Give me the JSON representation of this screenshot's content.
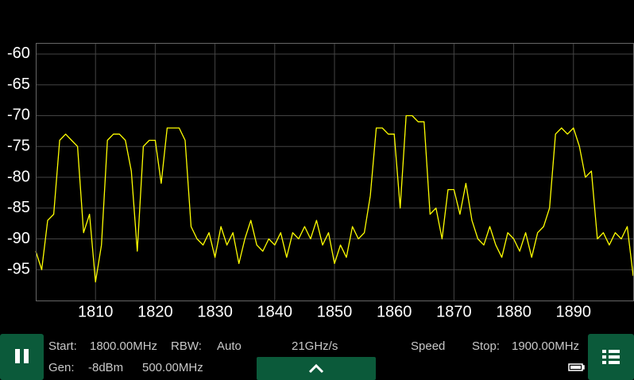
{
  "chart_data": {
    "type": "line",
    "x": [
      1800,
      1801,
      1802,
      1803,
      1804,
      1805,
      1806,
      1807,
      1808,
      1809,
      1810,
      1811,
      1812,
      1813,
      1814,
      1815,
      1816,
      1817,
      1818,
      1819,
      1820,
      1821,
      1822,
      1823,
      1824,
      1825,
      1826,
      1827,
      1828,
      1829,
      1830,
      1831,
      1832,
      1833,
      1834,
      1835,
      1836,
      1837,
      1838,
      1839,
      1840,
      1841,
      1842,
      1843,
      1844,
      1845,
      1846,
      1847,
      1848,
      1849,
      1850,
      1851,
      1852,
      1853,
      1854,
      1855,
      1856,
      1857,
      1858,
      1859,
      1860,
      1861,
      1862,
      1863,
      1864,
      1865,
      1866,
      1867,
      1868,
      1869,
      1870,
      1871,
      1872,
      1873,
      1874,
      1875,
      1876,
      1877,
      1878,
      1879,
      1880,
      1881,
      1882,
      1883,
      1884,
      1885,
      1886,
      1887,
      1888,
      1889,
      1890,
      1891,
      1892,
      1893,
      1894,
      1895,
      1896,
      1897,
      1898,
      1899,
      1900
    ],
    "series": [
      {
        "color": "#ffff00",
        "values": [
          -92,
          -95,
          -87,
          -86,
          -74,
          -73,
          -74,
          -75,
          -89,
          -86,
          -97,
          -91,
          -74,
          -73,
          -73,
          -74,
          -79,
          -92,
          -75,
          -74,
          -74,
          -81,
          -72,
          -72,
          -72,
          -74,
          -88,
          -90,
          -91,
          -89,
          -93,
          -88,
          -91,
          -89,
          -94,
          -90,
          -87,
          -91,
          -92,
          -90,
          -91,
          -89,
          -93,
          -89,
          -90,
          -88,
          -90,
          -87,
          -91,
          -89,
          -94,
          -91,
          -93,
          -88,
          -90,
          -89,
          -83,
          -72,
          -72,
          -73,
          -73,
          -85,
          -70,
          -70,
          -71,
          -71,
          -86,
          -85,
          -90,
          -82,
          -82,
          -86,
          -81,
          -87,
          -90,
          -91,
          -88,
          -91,
          -93,
          -89,
          -90,
          -92,
          -89,
          -93,
          -89,
          -88,
          -85,
          -73,
          -72,
          -73,
          -72,
          -75,
          -80,
          -79,
          -90,
          -89,
          -91,
          -89,
          -90,
          -88,
          -96
        ]
      }
    ],
    "xlim": [
      1800,
      1900
    ],
    "ylim": [
      -100,
      -58.2
    ],
    "xticks": [
      1810,
      1820,
      1830,
      1840,
      1850,
      1860,
      1870,
      1880,
      1890
    ],
    "yticks": [
      -60,
      -65,
      -70,
      -75,
      -80,
      -85,
      -90,
      -95
    ],
    "grid": true
  },
  "status": {
    "start_label": "Start:",
    "start_value": "1800.00MHz",
    "rbw_label": "RBW:",
    "rbw_value": "Auto",
    "sweep_rate": "21GHz/s",
    "speed_label": "Speed",
    "stop_label": "Stop:",
    "stop_value": "1900.00MHz",
    "gen_label": "Gen:",
    "gen_level": "-8dBm",
    "gen_freq": "500.00MHz"
  }
}
